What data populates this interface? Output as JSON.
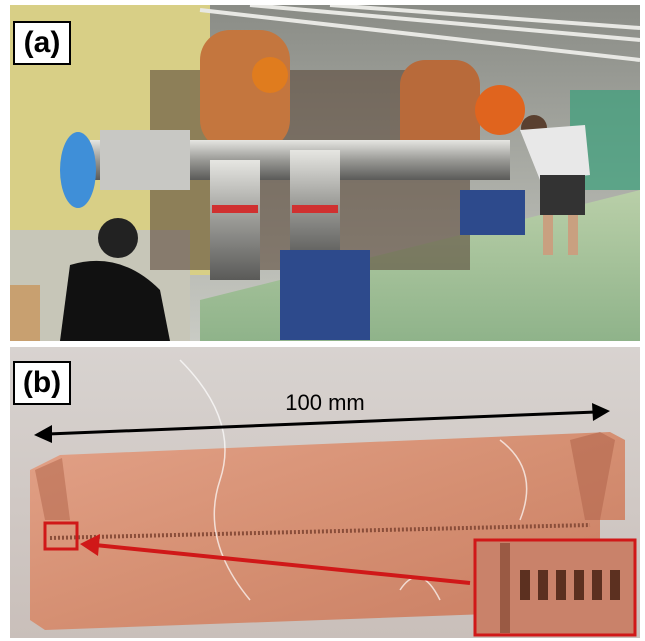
{
  "panels": [
    {
      "label": "(a)"
    },
    {
      "label": "(b)",
      "annotation": "100 mm"
    }
  ]
}
